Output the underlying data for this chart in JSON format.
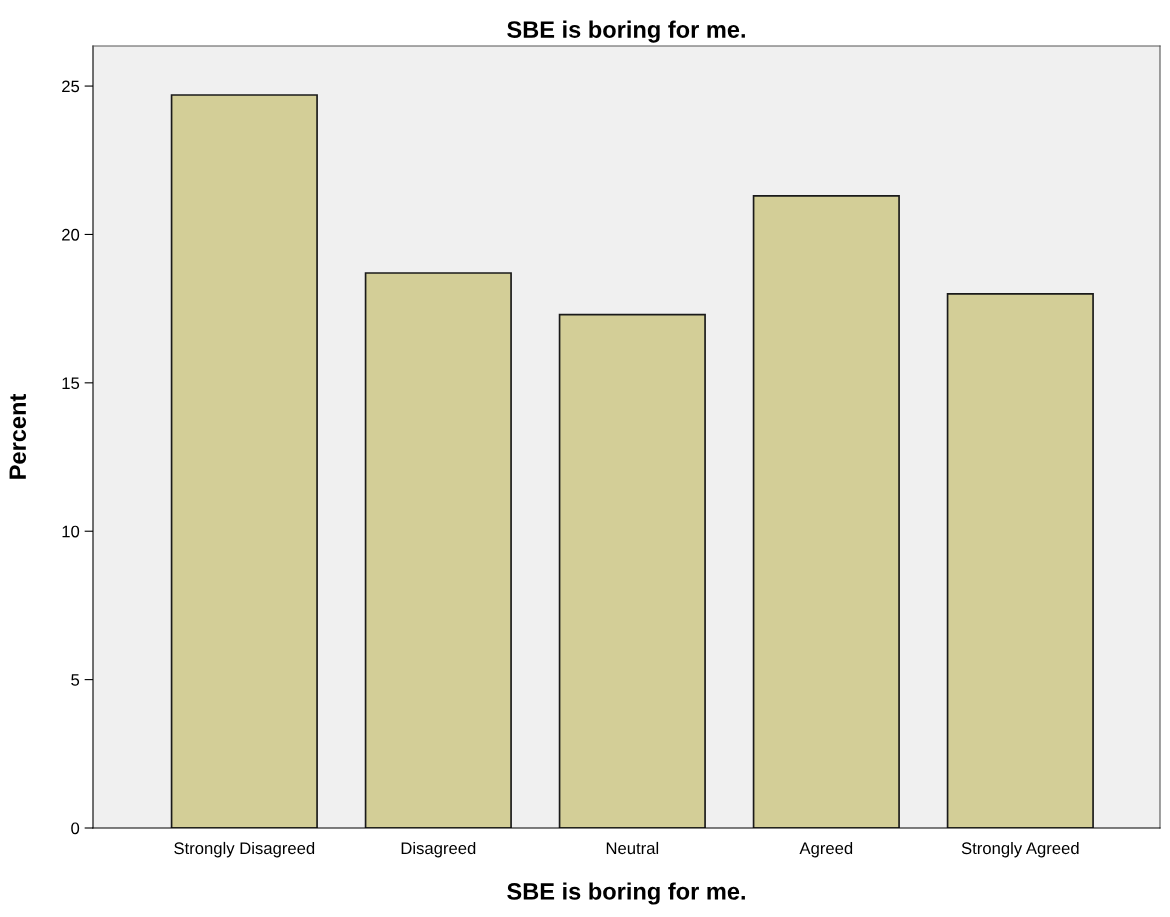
{
  "chart_data": {
    "type": "bar",
    "title": "SBE is boring for me.",
    "xlabel": "SBE is boring for me.",
    "ylabel": "Percent",
    "categories": [
      "Strongly Disagreed",
      "Disagreed",
      "Neutral",
      "Agreed",
      "Strongly Agreed"
    ],
    "values": [
      24.7,
      18.7,
      17.3,
      21.3,
      18.0
    ],
    "color": "#d3ce97",
    "ylim": [
      0,
      26.35
    ],
    "yticks": [
      0,
      5,
      10,
      15,
      20,
      25
    ],
    "grid": false,
    "legend": false
  }
}
